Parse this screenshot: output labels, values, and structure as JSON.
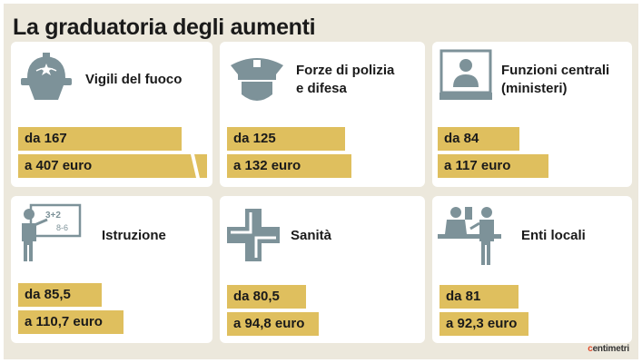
{
  "title": "La graduatoria degli aumenti",
  "brand": {
    "mark": "c",
    "rest": "entimetri"
  },
  "chart_data": {
    "type": "bar",
    "title": "La graduatoria degli aumenti",
    "categories": [
      {
        "name": "Vigili del fuoco",
        "icon": "firefighter-helmet-icon",
        "from": 167,
        "to": 407,
        "from_label": "da 167",
        "to_label": "a 407 euro",
        "to_truncated": true
      },
      {
        "name": "Forze di polizia e difesa",
        "name_lines": [
          "Forze di polizia",
          "e difesa"
        ],
        "icon": "police-cap-icon",
        "from": 125,
        "to": 132,
        "from_label": "da 125",
        "to_label": "a 132 euro"
      },
      {
        "name": "Funzioni centrali (ministeri)",
        "name_lines": [
          "Funzioni centrali",
          "(ministeri)"
        ],
        "icon": "office-worker-icon",
        "from": 84,
        "to": 117,
        "from_label": "da 84",
        "to_label": "a 117 euro"
      },
      {
        "name": "Istruzione",
        "icon": "teacher-blackboard-icon",
        "from": 85.5,
        "to": 110.7,
        "from_label": "da 85,5",
        "to_label": "a 110,7 euro"
      },
      {
        "name": "Sanità",
        "icon": "health-cross-icon",
        "from": 80.5,
        "to": 94.8,
        "from_label": "da 80,5",
        "to_label": "a 94,8 euro"
      },
      {
        "name": "Enti locali",
        "icon": "counter-clerk-icon",
        "from": 81,
        "to": 92.3,
        "from_label": "da 81",
        "to_label": "a 92,3 euro"
      }
    ],
    "bar_color": "#dfbf5e",
    "icon_color": "#7d9299"
  }
}
